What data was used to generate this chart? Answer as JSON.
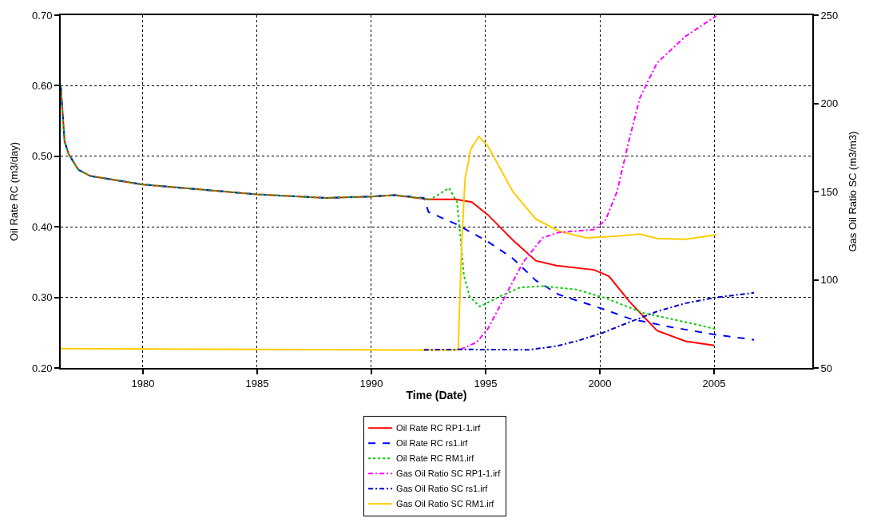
{
  "chart_data": {
    "type": "line",
    "xlabel": "Time (Date)",
    "ylabel": "Oil Rate RC (m3/day)",
    "y2label": "Gas Oil Ratio SC (m3/m3)",
    "xlim": [
      1976.4,
      2009.3
    ],
    "xticks": [
      1980,
      1985,
      1990,
      1995,
      2000,
      2005
    ],
    "ylim": [
      0.2,
      0.7
    ],
    "yticks": [
      {
        "value": 0.2,
        "label": "0.20"
      },
      {
        "value": 0.3,
        "label": "0.30"
      },
      {
        "value": 0.4,
        "label": "0.40"
      },
      {
        "value": 0.5,
        "label": "0.50"
      },
      {
        "value": 0.6,
        "label": "0.60"
      },
      {
        "value": 0.7,
        "label": "0.70"
      }
    ],
    "y2lim": [
      50,
      250
    ],
    "y2ticks": [
      50,
      100,
      150,
      200,
      250
    ],
    "grid": true,
    "legend": "bottom",
    "marker": "none",
    "series": [
      {
        "name": "Oil Rate RC RP1-1.irf",
        "color": "#ff0000",
        "line_style": "solid",
        "x": [
          1976.4,
          1976.57,
          1976.75,
          1977.17,
          1977.7,
          1980,
          1985,
          1988,
          1990,
          1991,
          1992.5,
          1993.7,
          1994.4,
          1995.1,
          1996.2,
          1997.2,
          1998.1,
          1999.75,
          2000.4,
          2001.3,
          2002.5,
          2003.75,
          2005.0
        ],
        "values": [
          0.6,
          0.521,
          0.503,
          0.481,
          0.472,
          0.46,
          0.446,
          0.441,
          0.443,
          0.445,
          0.439,
          0.439,
          0.435,
          0.417,
          0.381,
          0.352,
          0.345,
          0.339,
          0.33,
          0.294,
          0.253,
          0.238,
          0.232
        ]
      },
      {
        "name": "Oil Rate RC rs1.irf",
        "color": "#0000ff",
        "line_style": "dashed",
        "x": [
          1976.4,
          1976.57,
          1976.75,
          1977.17,
          1977.7,
          1980,
          1985,
          1988,
          1990,
          1991,
          1992.3,
          1992.5,
          1993.7,
          1995.1,
          1996.2,
          1997.2,
          1998.2,
          2000.1,
          2001.3,
          2003.1,
          2005.1,
          2006.75
        ],
        "values": [
          0.6,
          0.521,
          0.503,
          0.481,
          0.472,
          0.46,
          0.446,
          0.441,
          0.443,
          0.445,
          0.441,
          0.421,
          0.404,
          0.379,
          0.355,
          0.324,
          0.304,
          0.284,
          0.27,
          0.258,
          0.247,
          0.24
        ]
      },
      {
        "name": "Oil Rate RC RM1.irf",
        "color": "#00cc00",
        "line_style": "dotted",
        "x": [
          1976.4,
          1976.57,
          1976.75,
          1977.17,
          1977.7,
          1980,
          1985,
          1988,
          1990,
          1991,
          1992.6,
          1993.4,
          1993.75,
          1993.9,
          1994.05,
          1994.3,
          1994.75,
          1995.6,
          1996.5,
          1997.5,
          1999.0,
          2000.25,
          2001.9,
          2003.75,
          2005.1
        ],
        "values": [
          0.6,
          0.521,
          0.503,
          0.481,
          0.472,
          0.46,
          0.446,
          0.441,
          0.443,
          0.445,
          0.439,
          0.455,
          0.435,
          0.385,
          0.331,
          0.301,
          0.287,
          0.301,
          0.314,
          0.316,
          0.311,
          0.299,
          0.278,
          0.265,
          0.255
        ]
      },
      {
        "name": "Gas Oil Ratio SC RP1-1.irf",
        "color": "#ff00ff",
        "line_style": "dashdot",
        "axis": "y2",
        "x": [
          1993.9,
          1994.6,
          1995.1,
          1995.9,
          1996.65,
          1997.5,
          1998.2,
          1999.75,
          2000.25,
          2000.75,
          2001.3,
          2001.75,
          2002.5,
          2003.75,
          2005.1
        ],
        "values": [
          60.5,
          64.5,
          72.2,
          91.8,
          110.1,
          123.8,
          126.8,
          128.5,
          133.8,
          149.8,
          180.2,
          203,
          222.9,
          238,
          249.6
        ]
      },
      {
        "name": "Gas Oil Ratio SC rs1.irf",
        "color": "#0000c8",
        "line_style": "dashdot",
        "axis": "y2",
        "x": [
          1992.3,
          1994,
          1996.9,
          1998.1,
          1999.0,
          2000.1,
          2001.3,
          2002.5,
          2003.75,
          2005.1,
          2006.75
        ],
        "values": [
          60.3,
          60.5,
          60.3,
          62.4,
          65.3,
          69.8,
          76,
          82,
          86.7,
          90,
          92.6
        ]
      },
      {
        "name": "Gas Oil Ratio SC RM1.irf",
        "color": "#ffcc00",
        "line_style": "solid",
        "axis": "y2",
        "x": [
          1976.4,
          1985,
          1992,
          1993.7,
          1993.8,
          1993.95,
          1994.1,
          1994.35,
          1994.7,
          1995.1,
          1996.2,
          1997.2,
          1998.2,
          1999.4,
          2000.6,
          2001.75,
          2002.5,
          2003.75,
          2005.1
        ],
        "values": [
          61,
          60.5,
          60.2,
          60.2,
          60.5,
          119.5,
          157,
          174,
          181.3,
          175.8,
          149.8,
          134.4,
          127.6,
          123.8,
          124.6,
          125.9,
          123.4,
          123,
          125.5
        ]
      }
    ]
  }
}
